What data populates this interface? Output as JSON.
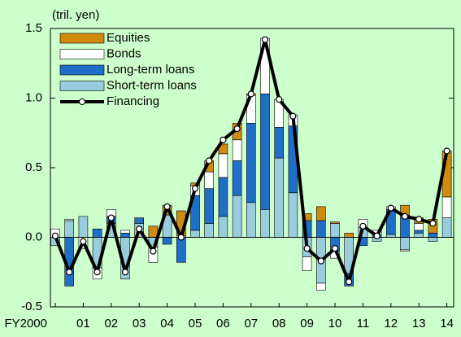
{
  "chart_data": {
    "type": "bar",
    "stacked": true,
    "unit_label": "(tril. yen)",
    "categories": [
      "FY2000",
      null,
      "01",
      null,
      "02",
      null,
      "03",
      null,
      "04",
      null,
      "05",
      null,
      "06",
      null,
      "07",
      null,
      "08",
      null,
      "09",
      null,
      "10",
      null,
      "11",
      null,
      "12",
      null,
      "13",
      null,
      "14"
    ],
    "series": [
      {
        "name": "Equities",
        "color": "#d08a10",
        "values": [
          0,
          0,
          0,
          0,
          0,
          0,
          0,
          0.08,
          0.07,
          0.18,
          0.02,
          0.08,
          0.07,
          0.12,
          0.01,
          0,
          0,
          0,
          0.05,
          0.1,
          0.01,
          0.03,
          0,
          0,
          0,
          0.07,
          0.04,
          0.1,
          0.33
        ]
      },
      {
        "name": "Bonds",
        "color": "#ffffff",
        "values": [
          0.06,
          0.01,
          -0.08,
          -0.08,
          0.05,
          0.02,
          0,
          -0.11,
          0,
          0.01,
          0.07,
          0.12,
          0.17,
          0.15,
          0.2,
          0.4,
          0.2,
          0.08,
          -0.1,
          -0.05,
          -0.05,
          0,
          0.06,
          0.03,
          0.02,
          -0.01,
          0.05,
          0,
          0.15
        ]
      },
      {
        "name": "Long-term loans",
        "color": "#1f6fc8",
        "values": [
          0,
          -0.35,
          0,
          0.06,
          0.05,
          0.03,
          0.04,
          0,
          -0.05,
          -0.18,
          0.25,
          0.25,
          0.28,
          0.25,
          0.57,
          0.83,
          0.22,
          0.48,
          0.12,
          0.12,
          -0.1,
          -0.09,
          -0.06,
          0.02,
          0.18,
          0.16,
          0.02,
          0.03,
          0
        ]
      },
      {
        "name": "Short-term loans",
        "color": "#99ccdd",
        "values": [
          -0.06,
          0.12,
          0.15,
          -0.22,
          0.1,
          -0.3,
          0.1,
          -0.07,
          0.16,
          0,
          0.05,
          0.1,
          0.15,
          0.3,
          0.25,
          0.2,
          0.57,
          0.32,
          -0.14,
          -0.33,
          0.1,
          -0.26,
          0.07,
          -0.03,
          0.02,
          -0.09,
          0.03,
          -0.03,
          0.14
        ]
      }
    ],
    "line": {
      "name": "Financing",
      "color": "#000000",
      "values": [
        0.01,
        -0.25,
        -0.03,
        -0.25,
        0.14,
        -0.25,
        0.06,
        -0.1,
        0.22,
        0.0,
        0.35,
        0.55,
        0.7,
        0.78,
        1.03,
        1.42,
        0.99,
        0.87,
        -0.08,
        -0.17,
        -0.08,
        -0.32,
        0.08,
        0.01,
        0.21,
        0.15,
        0.13,
        0.1,
        0.62
      ]
    },
    "ylim": [
      -0.5,
      1.5
    ],
    "yticks": [
      {
        "value": -0.5,
        "label": "-0.5"
      },
      {
        "value": 0,
        "label": "0.0"
      },
      {
        "value": 0.5,
        "label": "0.5"
      },
      {
        "value": 1,
        "label": "1.0"
      },
      {
        "value": 1.5,
        "label": "1.5"
      }
    ]
  }
}
